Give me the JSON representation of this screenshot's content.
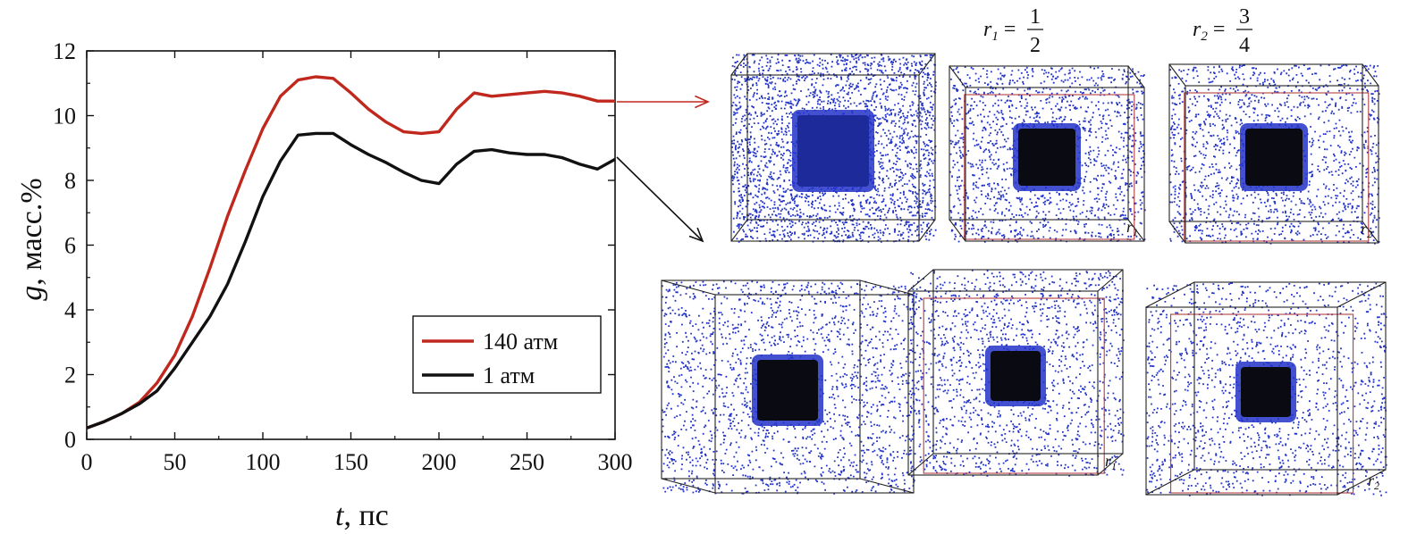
{
  "chart_data": {
    "type": "line",
    "xlabel_var": "t",
    "xlabel_unit": ", пс",
    "ylabel_var": "g",
    "ylabel_unit": ", масс.%",
    "xlim": [
      0,
      300
    ],
    "ylim": [
      0,
      12
    ],
    "x_ticks": [
      0,
      50,
      100,
      150,
      200,
      250,
      300
    ],
    "y_ticks": [
      0,
      2,
      4,
      6,
      8,
      10,
      12
    ],
    "grid": false,
    "legend_placement": "bottom-right",
    "series": [
      {
        "name": "140 атм",
        "color": "#c0281e",
        "x": [
          0,
          10,
          20,
          30,
          40,
          50,
          60,
          70,
          80,
          90,
          100,
          110,
          120,
          130,
          140,
          150,
          160,
          170,
          180,
          190,
          200,
          210,
          220,
          230,
          240,
          250,
          260,
          270,
          280,
          290,
          300
        ],
        "y": [
          0.35,
          0.55,
          0.8,
          1.15,
          1.75,
          2.6,
          3.8,
          5.3,
          6.9,
          8.3,
          9.6,
          10.6,
          11.1,
          11.2,
          11.15,
          10.7,
          10.2,
          9.8,
          9.5,
          9.45,
          9.5,
          10.2,
          10.7,
          10.6,
          10.65,
          10.7,
          10.75,
          10.7,
          10.6,
          10.45,
          10.45
        ]
      },
      {
        "name": "1 атм",
        "color": "#111111",
        "x": [
          0,
          10,
          20,
          30,
          40,
          50,
          60,
          70,
          80,
          90,
          100,
          110,
          120,
          130,
          140,
          150,
          160,
          170,
          180,
          190,
          200,
          210,
          220,
          230,
          240,
          250,
          260,
          270,
          280,
          290,
          300
        ],
        "y": [
          0.35,
          0.55,
          0.8,
          1.1,
          1.5,
          2.2,
          3.0,
          3.8,
          4.8,
          6.1,
          7.5,
          8.6,
          9.4,
          9.45,
          9.45,
          9.1,
          8.8,
          8.55,
          8.25,
          8.0,
          7.9,
          8.5,
          8.9,
          8.95,
          8.85,
          8.8,
          8.8,
          8.7,
          8.5,
          8.35,
          8.65
        ]
      }
    ]
  },
  "snapshots": {
    "ratio_labels": [
      {
        "var": "r",
        "sub": "1",
        "eq": " =",
        "num": "1",
        "den": "2"
      },
      {
        "var": "r",
        "sub": "2",
        "eq": " =",
        "num": "3",
        "den": "4"
      }
    ],
    "panel_corner_labels": [
      "r1",
      "r2",
      "r1",
      "r2"
    ],
    "particle_color": "#2233c8",
    "core_color": "#0a0a12",
    "box_edge_color": "#222222",
    "inner_box_color": "#b04040"
  }
}
